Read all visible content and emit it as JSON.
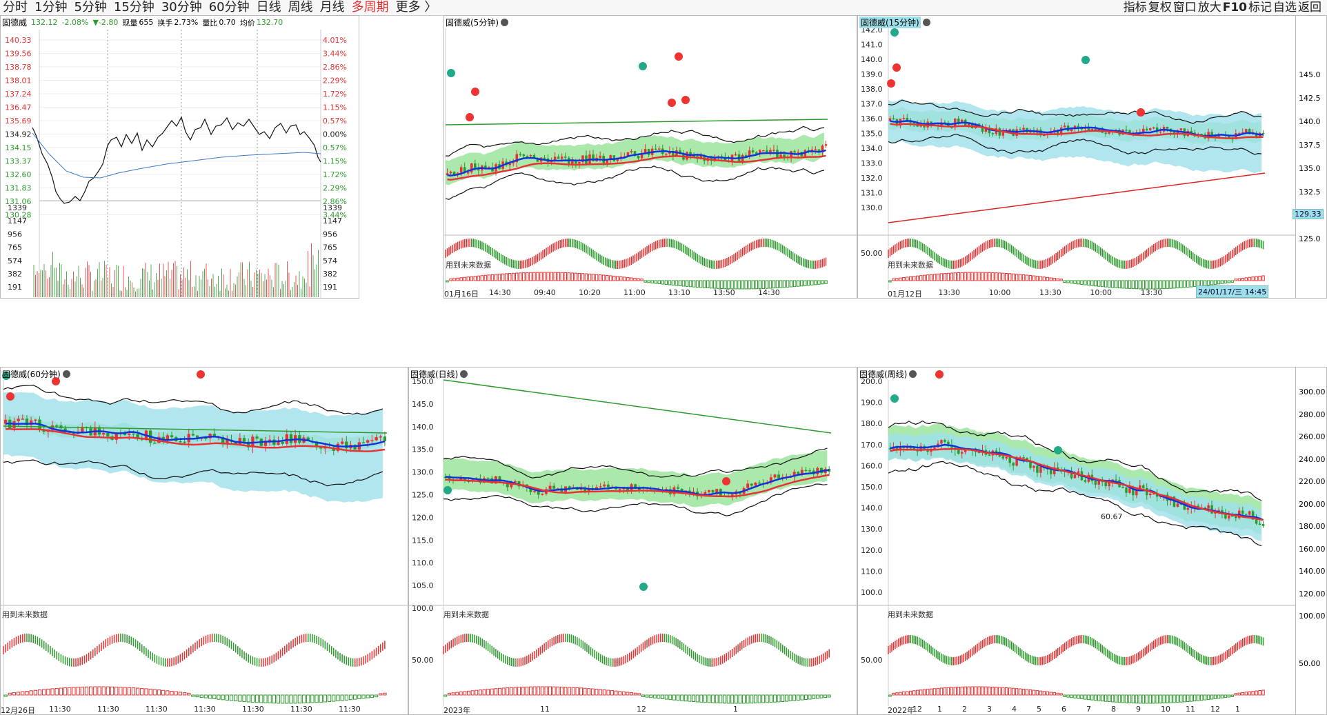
{
  "toolbar": {
    "periods": [
      "分时",
      "1分钟",
      "5分钟",
      "15分钟",
      "30分钟",
      "60分钟",
      "日线",
      "周线",
      "月线",
      "多周期",
      "更多 〉"
    ],
    "active_index": 9,
    "right_items": [
      "指标",
      "复权",
      "窗口",
      "放大",
      "F10",
      "标记",
      "自选",
      "返回"
    ]
  },
  "intraday": {
    "stock_name": "固德威",
    "price": "132.12",
    "change_pct": "-2.08%",
    "change": "▼-2.80",
    "volume_label": "现量",
    "volume": "655",
    "turnover_label": "换手",
    "turnover": "2.73%",
    "ratio_label": "量比",
    "ratio": "0.70",
    "avg_label": "均价",
    "avg": "132.70",
    "left_axis": [
      "140.33",
      "139.56",
      "138.78",
      "138.01",
      "137.24",
      "136.47",
      "135.69",
      "134.92",
      "134.15",
      "133.37",
      "132.60",
      "131.83",
      "131.06",
      "130.28"
    ],
    "right_axis": [
      "4.01%",
      "3.44%",
      "2.86%",
      "2.29%",
      "1.72%",
      "1.15%",
      "0.57%",
      "0.00%",
      "0.57%",
      "1.15%",
      "1.72%",
      "2.29%",
      "2.86%",
      "3.44%"
    ],
    "vol_axis": [
      "1339",
      "1147",
      "956",
      "765",
      "574",
      "382",
      "191"
    ]
  },
  "panels": {
    "m5": {
      "title": "固德威(5分钟)",
      "note": "用到未来数据",
      "axis": [],
      "xlabels": [
        "01月16日",
        "14:30",
        "09:40",
        "10:20",
        "11:00",
        "13:10",
        "13:50",
        "14:30"
      ]
    },
    "m15": {
      "title": "固德威(15分钟)",
      "note": "用到未来数据",
      "axis": [
        "142.0",
        "141.0",
        "140.0",
        "139.0",
        "138.0",
        "137.0",
        "136.0",
        "135.0",
        "134.0",
        "133.0",
        "132.0",
        "131.0",
        "130.0"
      ],
      "sub_axis": "50.00",
      "xlabels": [
        "01月12日",
        "13:30",
        "10:00",
        "13:30",
        "10:00",
        "13:30"
      ],
      "time_tag": "24/01/17/三 14:45"
    },
    "right_axis_top": [
      "145.0",
      "142.5",
      "140.0",
      "137.5",
      "135.0",
      "132.5",
      "127.5",
      "125.0"
    ],
    "price_tag": "129.33",
    "h60": {
      "title": "固德威(60分钟)",
      "note": "用到未来数据",
      "xlabels": [
        "12月26日",
        "11:30",
        "11:30",
        "11:30",
        "11:30",
        "11:30",
        "11:30",
        "11:30"
      ]
    },
    "day": {
      "title": "固德威(日线)",
      "note": "用到未来数据",
      "axis": [
        "150.0",
        "145.0",
        "140.0",
        "135.0",
        "130.0",
        "125.0",
        "120.0",
        "115.0",
        "110.0",
        "105.0",
        "100.0"
      ],
      "sub_axis": "50.00",
      "xlabels": [
        "2023年",
        "11",
        "12",
        "1"
      ]
    },
    "week": {
      "title": "固德威(周线)",
      "note": "用到未来数据",
      "axis": [
        "200.0",
        "190.0",
        "180.0",
        "170.0",
        "160.0",
        "150.0",
        "140.0",
        "130.0",
        "120.0",
        "110.0",
        "100.0"
      ],
      "sub_axis": "50.00",
      "label": "60.67",
      "xlabels": [
        "2022年",
        "12",
        "1",
        "2",
        "3",
        "4",
        "5",
        "6",
        "7",
        "8",
        "9",
        "10",
        "11",
        "12",
        "1"
      ]
    },
    "right_axis_bottom": [
      "300.00",
      "280.00",
      "260.00",
      "240.00",
      "220.00",
      "200.00",
      "180.00",
      "160.00",
      "140.00",
      "120.00",
      "100.00"
    ],
    "right_sub_axis": "50.00"
  },
  "colors": {
    "up": "#e53333",
    "down": "#2c9a2c",
    "ma_blue": "#1133dd",
    "band": "#9ee0ea",
    "cloud": "#8fe08f"
  }
}
